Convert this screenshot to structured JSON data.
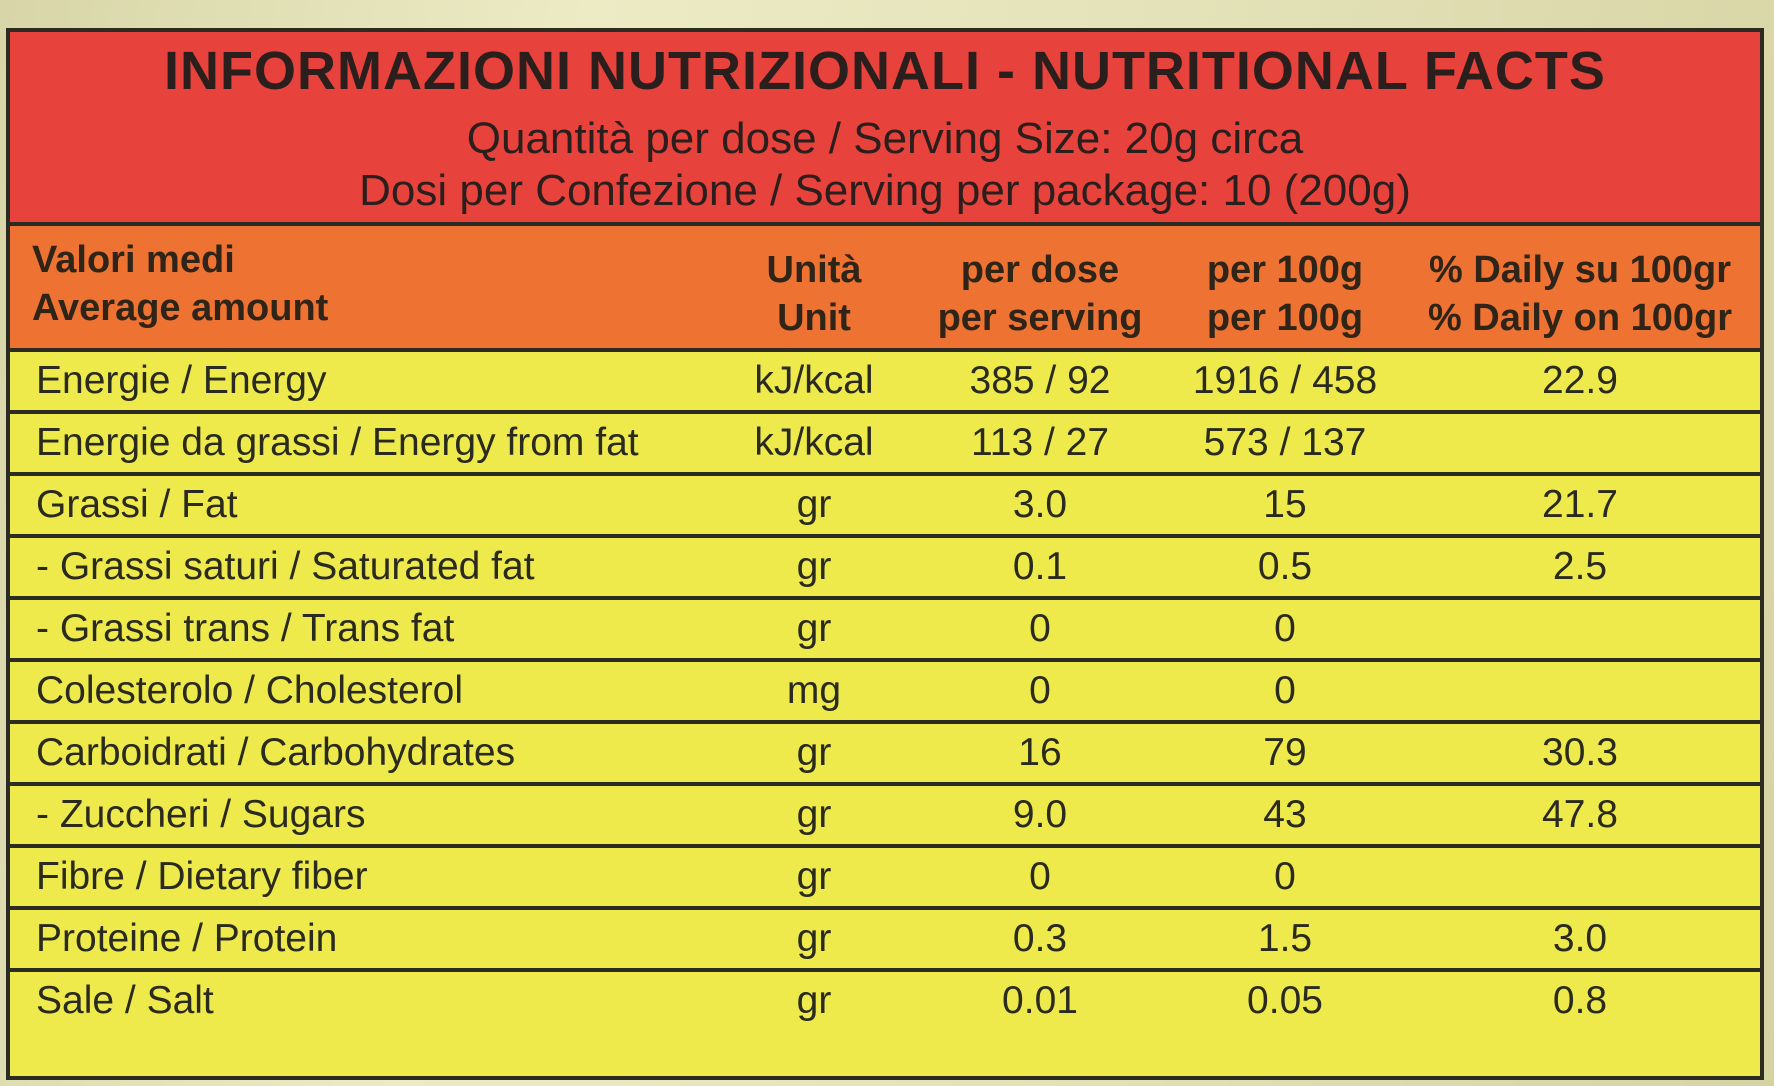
{
  "title": "INFORMAZIONI NUTRIZIONALI - NUTRITIONAL FACTS",
  "serving_size": "Quantità per dose / Serving Size: 20g circa",
  "servings_per_package": "Dosi per Confezione / Serving per package: 10 (200g)",
  "colors": {
    "title_band": "#e8423c",
    "header_band": "#ee7232",
    "table_body": "#eeea4c",
    "border": "#2b2b22"
  },
  "header": {
    "amount_it": "Valori medi",
    "amount_en": "Average amount",
    "unit_it": "Unità",
    "unit_en": "Unit",
    "serving_it": "per dose",
    "serving_en": "per serving",
    "per100_it": "per 100g",
    "per100_en": "per 100g",
    "daily_it": "% Daily su 100gr",
    "daily_en": "% Daily on 100gr"
  },
  "rows": [
    {
      "name": "Energie / Energy",
      "unit": "kJ/kcal",
      "per_serving": "385 / 92",
      "per_100g": "1916 / 458",
      "daily": "22.9"
    },
    {
      "name": "Energie da grassi / Energy from fat",
      "unit": "kJ/kcal",
      "per_serving": "113 / 27",
      "per_100g": "573 / 137",
      "daily": ""
    },
    {
      "name": "Grassi / Fat",
      "unit": "gr",
      "per_serving": "3.0",
      "per_100g": "15",
      "daily": "21.7"
    },
    {
      "name": "- Grassi saturi / Saturated fat",
      "unit": "gr",
      "per_serving": "0.1",
      "per_100g": "0.5",
      "daily": "2.5"
    },
    {
      "name": "- Grassi trans / Trans fat",
      "unit": "gr",
      "per_serving": "0",
      "per_100g": "0",
      "daily": ""
    },
    {
      "name": "Colesterolo / Cholesterol",
      "unit": "mg",
      "per_serving": "0",
      "per_100g": "0",
      "daily": ""
    },
    {
      "name": "Carboidrati / Carbohydrates",
      "unit": "gr",
      "per_serving": "16",
      "per_100g": "79",
      "daily": "30.3"
    },
    {
      "name": "- Zuccheri / Sugars",
      "unit": "gr",
      "per_serving": "9.0",
      "per_100g": "43",
      "daily": "47.8"
    },
    {
      "name": "Fibre / Dietary fiber",
      "unit": "gr",
      "per_serving": "0",
      "per_100g": "0",
      "daily": ""
    },
    {
      "name": "Proteine / Protein",
      "unit": "gr",
      "per_serving": "0.3",
      "per_100g": "1.5",
      "daily": "3.0"
    },
    {
      "name": "Sale / Salt",
      "unit": "gr",
      "per_serving": "0.01",
      "per_100g": "0.05",
      "daily": "0.8"
    }
  ]
}
